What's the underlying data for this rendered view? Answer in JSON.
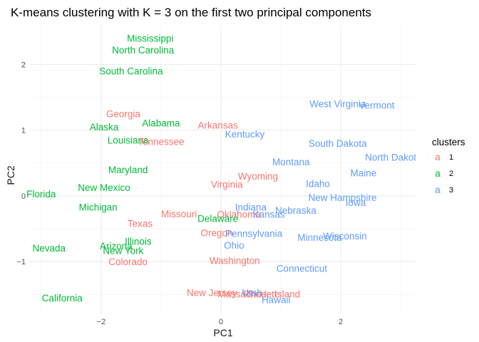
{
  "chart_data": {
    "type": "scatter",
    "title": "K-means clustering with K = 3 on the first two principal components",
    "xlabel": "PC1",
    "ylabel": "PC2",
    "xlim": [
      -3.2,
      3.25
    ],
    "ylim": [
      -1.8,
      2.6
    ],
    "x_ticks": [
      -2,
      0,
      2
    ],
    "y_ticks": [
      -1,
      0,
      1,
      2
    ],
    "grid": true,
    "legend": {
      "title": "clusters",
      "position": "right",
      "key_glyph": "a",
      "entries": [
        {
          "label": "1",
          "color": "#F8766D"
        },
        {
          "label": "2",
          "color": "#00BA38"
        },
        {
          "label": "3",
          "color": "#619CFF"
        }
      ]
    },
    "points": [
      {
        "label": "Mississippi",
        "x": -1.18,
        "y": 2.4,
        "cluster": "2"
      },
      {
        "label": "North Carolina",
        "x": -1.3,
        "y": 2.22,
        "cluster": "2"
      },
      {
        "label": "South Carolina",
        "x": -1.5,
        "y": 1.9,
        "cluster": "2"
      },
      {
        "label": "Georgia",
        "x": -1.63,
        "y": 1.25,
        "cluster": "1"
      },
      {
        "label": "Alabama",
        "x": -1.0,
        "y": 1.11,
        "cluster": "2"
      },
      {
        "label": "Alaska",
        "x": -1.95,
        "y": 1.05,
        "cluster": "2"
      },
      {
        "label": "Louisiana",
        "x": -1.55,
        "y": 0.85,
        "cluster": "2"
      },
      {
        "label": "Tennessee",
        "x": -1.0,
        "y": 0.83,
        "cluster": "1"
      },
      {
        "label": "Arkansas",
        "x": -0.05,
        "y": 1.08,
        "cluster": "1"
      },
      {
        "label": "West Virginia",
        "x": 1.95,
        "y": 1.4,
        "cluster": "3"
      },
      {
        "label": "Vermont",
        "x": 2.6,
        "y": 1.38,
        "cluster": "3"
      },
      {
        "label": "Kentucky",
        "x": 0.4,
        "y": 0.94,
        "cluster": "3"
      },
      {
        "label": "South Dakota",
        "x": 1.95,
        "y": 0.8,
        "cluster": "3"
      },
      {
        "label": "North Dakota",
        "x": 2.88,
        "y": 0.59,
        "cluster": "3"
      },
      {
        "label": "Montana",
        "x": 1.17,
        "y": 0.52,
        "cluster": "3"
      },
      {
        "label": "Maryland",
        "x": -1.55,
        "y": 0.4,
        "cluster": "2"
      },
      {
        "label": "Wyoming",
        "x": 0.62,
        "y": 0.3,
        "cluster": "1"
      },
      {
        "label": "Maine",
        "x": 2.38,
        "y": 0.35,
        "cluster": "3"
      },
      {
        "label": "Idaho",
        "x": 1.62,
        "y": 0.19,
        "cluster": "3"
      },
      {
        "label": "Virginia",
        "x": 0.1,
        "y": 0.18,
        "cluster": "1"
      },
      {
        "label": "New Mexico",
        "x": -1.95,
        "y": 0.13,
        "cluster": "2"
      },
      {
        "label": "Florida",
        "x": -3.0,
        "y": 0.03,
        "cluster": "2"
      },
      {
        "label": "New Hampshire",
        "x": 2.03,
        "y": -0.02,
        "cluster": "3"
      },
      {
        "label": "Iowa",
        "x": 2.25,
        "y": -0.1,
        "cluster": "3"
      },
      {
        "label": "Michigan",
        "x": -2.05,
        "y": -0.17,
        "cluster": "2"
      },
      {
        "label": "Indiana",
        "x": 0.5,
        "y": -0.17,
        "cluster": "3"
      },
      {
        "label": "Nebraska",
        "x": 1.25,
        "y": -0.22,
        "cluster": "3"
      },
      {
        "label": "Missouri",
        "x": -0.7,
        "y": -0.27,
        "cluster": "1"
      },
      {
        "label": "Oklahoma",
        "x": 0.3,
        "y": -0.28,
        "cluster": "1"
      },
      {
        "label": "Kansas",
        "x": 0.8,
        "y": -0.28,
        "cluster": "3"
      },
      {
        "label": "Delaware",
        "x": -0.05,
        "y": -0.34,
        "cluster": "2"
      },
      {
        "label": "Texas",
        "x": -1.35,
        "y": -0.42,
        "cluster": "1"
      },
      {
        "label": "Oregon",
        "x": -0.07,
        "y": -0.56,
        "cluster": "1"
      },
      {
        "label": "Pennsylvania",
        "x": 0.55,
        "y": -0.57,
        "cluster": "3"
      },
      {
        "label": "Minnesota",
        "x": 1.65,
        "y": -0.63,
        "cluster": "3"
      },
      {
        "label": "Wisconsin",
        "x": 2.07,
        "y": -0.61,
        "cluster": "3"
      },
      {
        "label": "Illinois",
        "x": -1.38,
        "y": -0.69,
        "cluster": "2"
      },
      {
        "label": "Arizona",
        "x": -1.75,
        "y": -0.76,
        "cluster": "2"
      },
      {
        "label": "Ohio",
        "x": 0.22,
        "y": -0.75,
        "cluster": "3"
      },
      {
        "label": "Nevada",
        "x": -2.87,
        "y": -0.79,
        "cluster": "2"
      },
      {
        "label": "New York",
        "x": -1.63,
        "y": -0.83,
        "cluster": "2"
      },
      {
        "label": "Colorado",
        "x": -1.55,
        "y": -1.0,
        "cluster": "1"
      },
      {
        "label": "Washington",
        "x": 0.23,
        "y": -0.98,
        "cluster": "1"
      },
      {
        "label": "Connecticut",
        "x": 1.35,
        "y": -1.1,
        "cluster": "3"
      },
      {
        "label": "New Jersey",
        "x": -0.15,
        "y": -1.47,
        "cluster": "1"
      },
      {
        "label": "Massachusetts",
        "x": 0.48,
        "y": -1.49,
        "cluster": "1"
      },
      {
        "label": "Rhode Island",
        "x": 0.85,
        "y": -1.49,
        "cluster": "1"
      },
      {
        "label": "Utah",
        "x": 0.52,
        "y": -1.47,
        "cluster": "3"
      },
      {
        "label": "Hawaii",
        "x": 0.92,
        "y": -1.58,
        "cluster": "3"
      },
      {
        "label": "California",
        "x": -2.65,
        "y": -1.55,
        "cluster": "2"
      }
    ]
  }
}
